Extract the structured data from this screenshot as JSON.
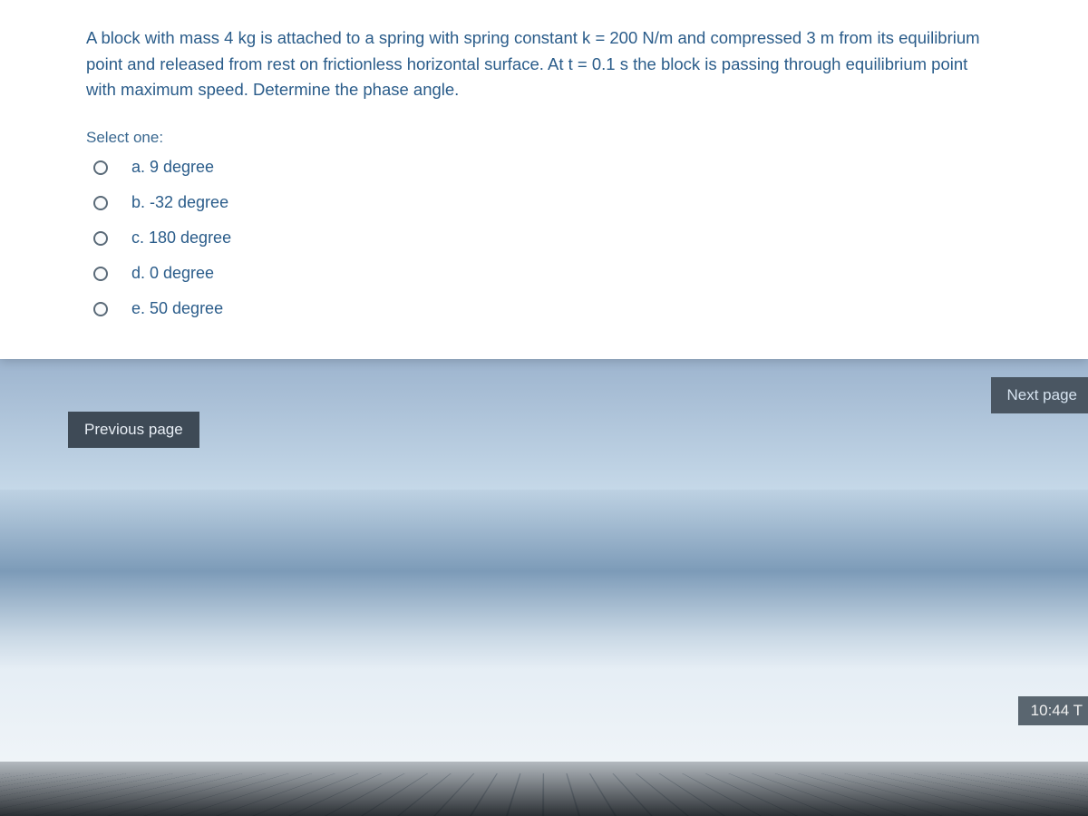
{
  "question": {
    "text": "A block with mass 4 kg is attached to a spring with spring constant k = 200 N/m and compressed 3 m from its equilibrium point and released from rest on frictionless horizontal surface. At t = 0.1 s the block is passing through equilibrium point with maximum speed. Determine the phase angle.",
    "select_label": "Select one:",
    "options": [
      {
        "label": "a. 9 degree"
      },
      {
        "label": "b. -32 degree"
      },
      {
        "label": "c. 180 degree"
      },
      {
        "label": "d. 0 degree"
      },
      {
        "label": "e. 50 degree"
      }
    ]
  },
  "navigation": {
    "previous_label": "Previous page",
    "next_label": "Next page"
  },
  "status": {
    "time": "10:44 T"
  },
  "colors": {
    "card_bg": "#ffffff",
    "text_primary": "#2a5c8a",
    "button_bg": "#3e4a56",
    "button_text": "#e8eef5",
    "radio_border": "#5a6a78"
  }
}
